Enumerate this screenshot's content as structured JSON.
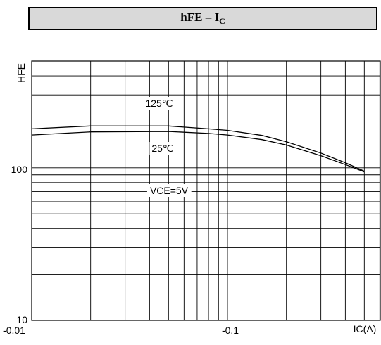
{
  "title": {
    "main": "hFE – I",
    "sub": "C"
  },
  "chart_data": {
    "type": "line",
    "title": "hFE – IC",
    "xlabel": "IC(A)",
    "ylabel": "HFE",
    "x_scale": "log",
    "y_scale": "log",
    "xlim": [
      0.01,
      1.0
    ],
    "ylim": [
      10,
      500
    ],
    "x_tick_labels": [
      "-0.01",
      "-0.1"
    ],
    "y_tick_labels": [
      "10",
      "100"
    ],
    "grid": true,
    "annotations": [
      "VCE=5V"
    ],
    "series": [
      {
        "name": "125℃",
        "x": [
          0.01,
          0.02,
          0.05,
          0.08,
          0.1,
          0.15,
          0.2,
          0.3,
          0.4,
          0.5
        ],
        "y": [
          180,
          188,
          188,
          180,
          176,
          163,
          148,
          125,
          108,
          95
        ]
      },
      {
        "name": "25℃",
        "x": [
          0.01,
          0.02,
          0.05,
          0.08,
          0.1,
          0.15,
          0.2,
          0.3,
          0.4,
          0.5
        ],
        "y": [
          164,
          172,
          173,
          168,
          164,
          153,
          141,
          120,
          105,
          94
        ]
      }
    ]
  }
}
